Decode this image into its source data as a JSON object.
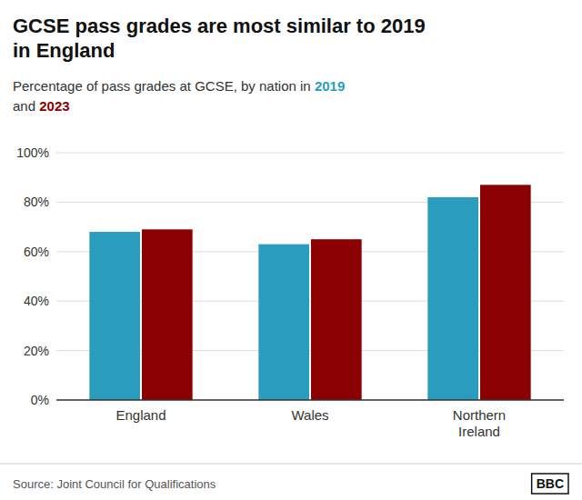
{
  "chart_data": {
    "type": "bar",
    "title": "GCSE pass grades are most similar to 2019\nin England",
    "subtitle": [
      "Percentage of pass grades at GCSE, by nation in ",
      "and "
    ],
    "categories": [
      "England",
      "Wales",
      "Northern\nIreland"
    ],
    "series": [
      {
        "name": "2019",
        "color": "#2a9dbf",
        "values": [
          68,
          63,
          82
        ]
      },
      {
        "name": "2023",
        "color": "#8b0000",
        "values": [
          69,
          65,
          87
        ]
      }
    ],
    "ylim": [
      0,
      100
    ],
    "yticks": [
      {
        "value": 0,
        "label": "0%"
      },
      {
        "value": 20,
        "label": "20%"
      },
      {
        "value": 40,
        "label": "40%"
      },
      {
        "value": 60,
        "label": "60%"
      },
      {
        "value": 80,
        "label": "80%"
      },
      {
        "value": 100,
        "label": "100%"
      }
    ],
    "grid": true,
    "source": "Source: Joint Council for Qualifications",
    "annotations": [
      "BBC"
    ]
  }
}
